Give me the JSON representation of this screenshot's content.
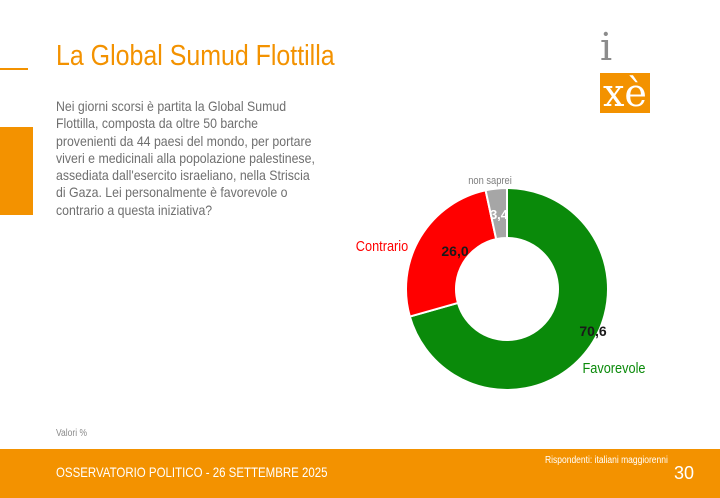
{
  "header": {
    "title": "La Global Sumud Flottilla",
    "logo_text_i": "i",
    "logo_text_xe": "xè"
  },
  "question": "Nei giorni scorsi è partita la Global Sumud Flottilla, composta da oltre 50 barche provenienti da 44 paesi del mondo, per portare viveri e medicinali alla popolazione palestinese, assediata dall'esercito israeliano, nella Striscia di Gaza. Lei personalmente è favorevole o contrario a questa iniziativa?",
  "footnote": "Valori %",
  "footer": {
    "left": "OSSERVATORIO POLITICO - 26 SETTEMBRE 2025",
    "respondents": "Rispondenti: italiani maggiorenni",
    "page_number": "30"
  },
  "colors": {
    "accent": "#f39200",
    "favorevole": "#0a8a0a",
    "contrario": "#ff0000",
    "non_saprei": "#a6a6a6"
  },
  "chart_data": {
    "type": "pie",
    "donut": true,
    "title": "",
    "slices": [
      {
        "label": "Favorevole",
        "value": 70.6,
        "value_label": "70,6",
        "color": "#0a8a0a"
      },
      {
        "label": "Contrario",
        "value": 26.0,
        "value_label": "26,0",
        "color": "#ff0000"
      },
      {
        "label": "non saprei",
        "value": 3.4,
        "value_label": "3,4",
        "color": "#a6a6a6"
      }
    ],
    "legend": "none"
  }
}
